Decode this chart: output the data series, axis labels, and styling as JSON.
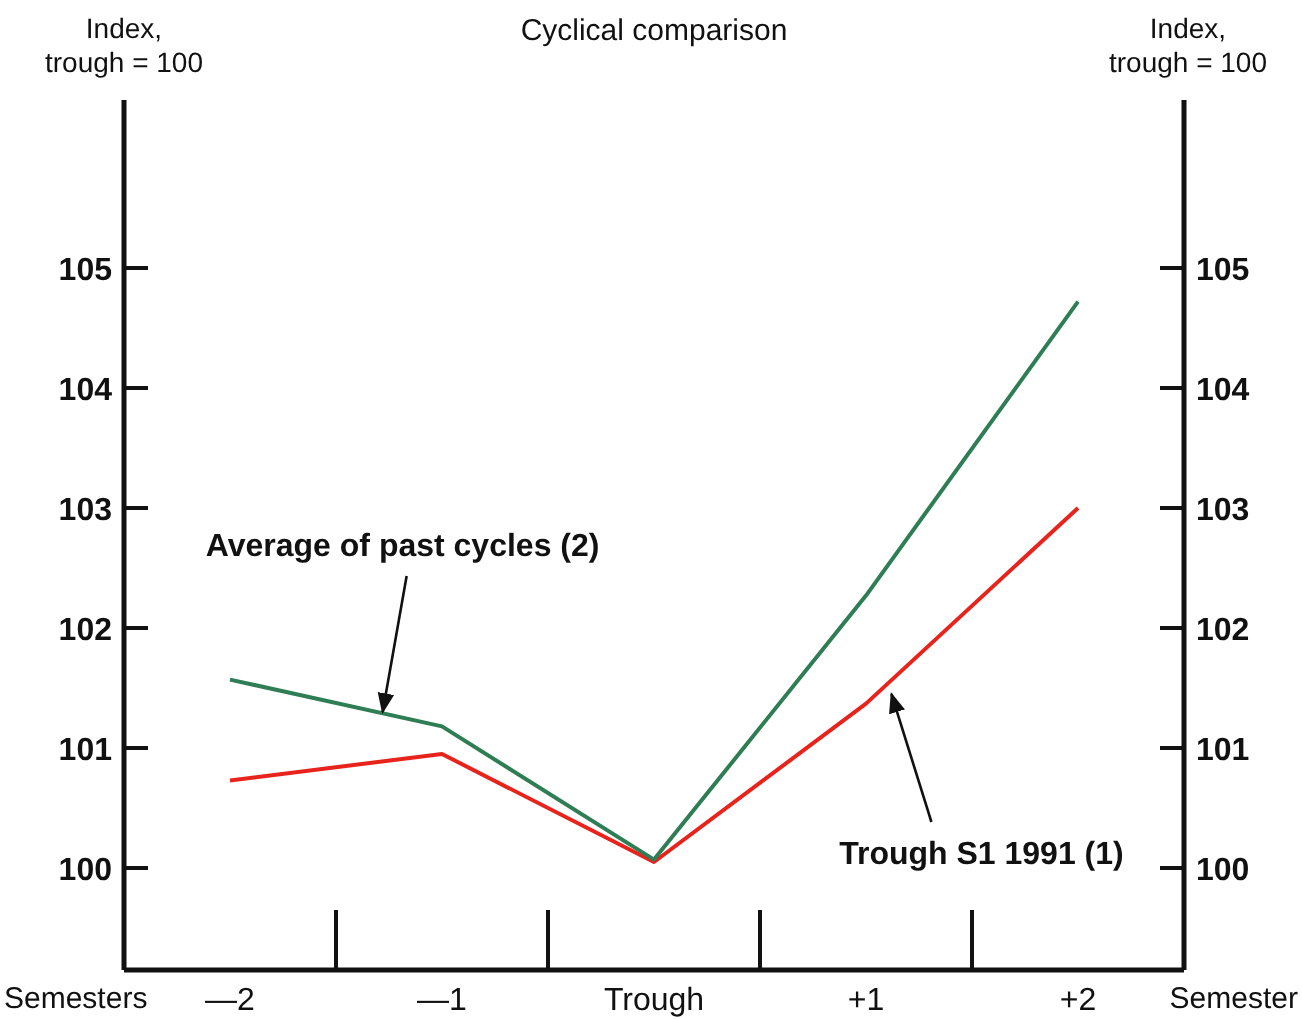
{
  "chart_data": {
    "type": "line",
    "title": "Cyclical comparison",
    "xlabel": "Semesters",
    "ylabel": "Index,\ntrough = 100",
    "y2label": "Index,\ntrough = 100",
    "x": [
      -2,
      -1,
      0,
      1,
      2
    ],
    "series": [
      {
        "color": "#e8231c",
        "values": [
          100.73,
          100.95,
          100.05,
          101.37,
          103.0
        ]
      },
      {
        "color": "#2f7d55",
        "values": [
          101.57,
          101.18,
          100.07,
          102.27,
          104.72
        ]
      }
    ],
    "xlim": [
      -2.5,
      2.5
    ],
    "xticks": [
      {
        "value": -2,
        "label": "—2"
      },
      {
        "value": -1,
        "label": "—1"
      },
      {
        "value": 0,
        "label": "Trough"
      },
      {
        "value": 1,
        "label": "+1"
      },
      {
        "value": 2,
        "label": "+2"
      }
    ],
    "ylim": [
      99.15,
      106.4
    ],
    "yticks": [
      100,
      101,
      102,
      103,
      104,
      105
    ],
    "y2lim": [
      99.15,
      106.4
    ],
    "y2ticks": [
      100,
      101,
      102,
      103,
      104,
      105
    ],
    "annotations": [
      {
        "text": "Average of past cycles (2)",
        "x": -1.28,
        "y": 101.3
      },
      {
        "text": "Trough S1 1991 (1)",
        "x": 1.12,
        "y": 101.45
      },
      "Semester"
    ]
  }
}
